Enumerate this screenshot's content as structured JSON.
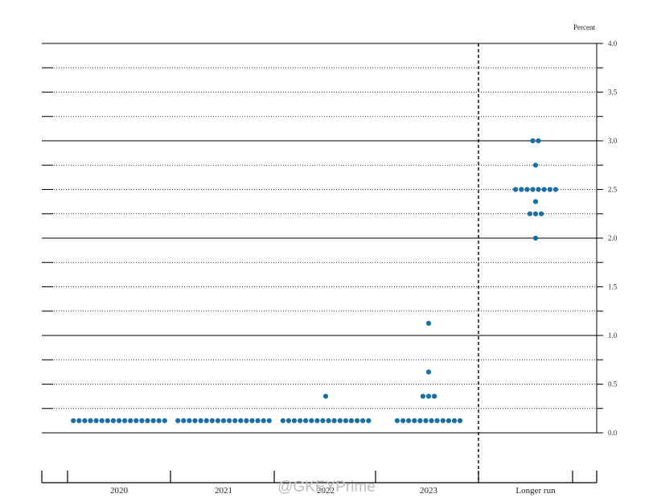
{
  "chart_data": {
    "type": "scatter",
    "ylabel": "Percent",
    "ylim": [
      0.0,
      4.0
    ],
    "yticks": [
      {
        "value": 4.0,
        "label": "4.0"
      },
      {
        "value": 3.75,
        "label": ""
      },
      {
        "value": 3.5,
        "label": "3.5"
      },
      {
        "value": 3.25,
        "label": ""
      },
      {
        "value": 3.0,
        "label": "3.0"
      },
      {
        "value": 2.75,
        "label": ""
      },
      {
        "value": 2.5,
        "label": "2.5"
      },
      {
        "value": 2.25,
        "label": ""
      },
      {
        "value": 2.0,
        "label": "2.0"
      },
      {
        "value": 1.75,
        "label": ""
      },
      {
        "value": 1.5,
        "label": "1.5"
      },
      {
        "value": 1.25,
        "label": ""
      },
      {
        "value": 1.0,
        "label": "1.0"
      },
      {
        "value": 0.75,
        "label": ""
      },
      {
        "value": 0.5,
        "label": "0.5"
      },
      {
        "value": 0.25,
        "label": ""
      },
      {
        "value": 0.0,
        "label": "0.0"
      }
    ],
    "solid_gridlines": [
      4.0,
      3.0,
      2.0,
      1.0,
      0.0
    ],
    "grid": true,
    "separator_after_category": "2023",
    "categories": [
      "2020",
      "2021",
      "2022",
      "2023",
      "Longer run"
    ],
    "dots": [
      {
        "category": "2020",
        "counts": [
          {
            "value": 0.125,
            "count": 17
          }
        ]
      },
      {
        "category": "2021",
        "counts": [
          {
            "value": 0.125,
            "count": 17
          }
        ]
      },
      {
        "category": "2022",
        "counts": [
          {
            "value": 0.125,
            "count": 16
          },
          {
            "value": 0.375,
            "count": 1
          }
        ]
      },
      {
        "category": "2023",
        "counts": [
          {
            "value": 0.125,
            "count": 12
          },
          {
            "value": 0.375,
            "count": 3
          },
          {
            "value": 0.625,
            "count": 1
          },
          {
            "value": 1.125,
            "count": 1
          }
        ]
      },
      {
        "category": "Longer run",
        "counts": [
          {
            "value": 2.0,
            "count": 1
          },
          {
            "value": 2.25,
            "count": 3
          },
          {
            "value": 2.375,
            "count": 1
          },
          {
            "value": 2.5,
            "count": 8
          },
          {
            "value": 2.75,
            "count": 1
          },
          {
            "value": 3.0,
            "count": 2
          }
        ]
      }
    ],
    "dot_color": "#1a6fa6"
  },
  "watermark": {
    "text": "@GKEYPrime"
  }
}
